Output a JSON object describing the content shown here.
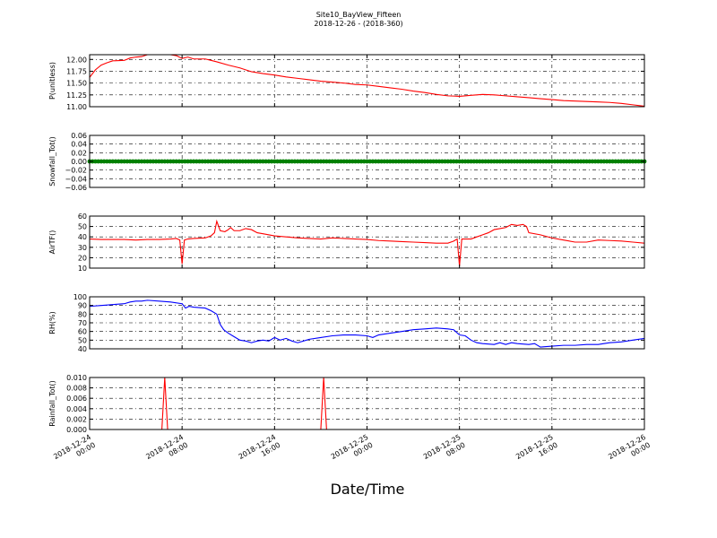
{
  "chart_data": {
    "type": "line",
    "title": "Site10_BayView_Fifteen",
    "subtitle": "2018-12-26 - (2018-360)",
    "xlabel": "Date/Time",
    "grid": true,
    "x_range": [
      "2018-12-24 00:00",
      "2018-12-26 00:00"
    ],
    "x_ticks": [
      {
        "line1": "2018-12-24",
        "line2": "00:00",
        "hour": 0
      },
      {
        "line1": "2018-12-24",
        "line2": "08:00",
        "hour": 8
      },
      {
        "line1": "2018-12-24",
        "line2": "16:00",
        "hour": 16
      },
      {
        "line1": "2018-12-25",
        "line2": "00:00",
        "hour": 24
      },
      {
        "line1": "2018-12-25",
        "line2": "08:00",
        "hour": 32
      },
      {
        "line1": "2018-12-25",
        "line2": "16:00",
        "hour": 40
      },
      {
        "line1": "2018-12-26",
        "line2": "00:00",
        "hour": 48
      }
    ],
    "panels": [
      {
        "ylabel": "P(unitless)",
        "color": "#ff0000",
        "ylim": [
          11.0,
          12.1
        ],
        "yticks": [
          "11.00",
          "11.25",
          "11.50",
          "11.75",
          "12.00"
        ],
        "ytick_values": [
          11.0,
          11.25,
          11.5,
          11.75,
          12.0
        ],
        "points": [
          [
            0,
            11.62
          ],
          [
            0.5,
            11.78
          ],
          [
            1,
            11.88
          ],
          [
            1.5,
            11.93
          ],
          [
            2,
            11.97
          ],
          [
            3,
            11.98
          ],
          [
            3.5,
            12.03
          ],
          [
            4,
            12.05
          ],
          [
            4.5,
            12.06
          ],
          [
            5,
            12.1
          ],
          [
            6,
            12.1
          ],
          [
            7,
            12.1
          ],
          [
            7.5,
            12.08
          ],
          [
            8,
            12.02
          ],
          [
            8.5,
            12.05
          ],
          [
            9,
            12.01
          ],
          [
            10,
            12.01
          ],
          [
            10.5,
            11.98
          ],
          [
            11,
            11.95
          ],
          [
            12,
            11.88
          ],
          [
            13,
            11.82
          ],
          [
            13.5,
            11.78
          ],
          [
            14,
            11.74
          ],
          [
            15,
            11.7
          ],
          [
            16,
            11.67
          ],
          [
            17,
            11.63
          ],
          [
            18,
            11.6
          ],
          [
            19,
            11.57
          ],
          [
            20,
            11.54
          ],
          [
            21,
            11.52
          ],
          [
            22,
            11.5
          ],
          [
            23,
            11.47
          ],
          [
            24,
            11.46
          ],
          [
            25,
            11.43
          ],
          [
            26,
            11.4
          ],
          [
            27,
            11.37
          ],
          [
            28,
            11.33
          ],
          [
            29,
            11.3
          ],
          [
            30,
            11.26
          ],
          [
            31,
            11.23
          ],
          [
            32,
            11.22
          ],
          [
            33,
            11.24
          ],
          [
            34,
            11.26
          ],
          [
            35,
            11.25
          ],
          [
            36,
            11.23
          ],
          [
            37,
            11.21
          ],
          [
            38,
            11.19
          ],
          [
            39,
            11.17
          ],
          [
            40,
            11.15
          ],
          [
            41,
            11.13
          ],
          [
            42,
            11.12
          ],
          [
            43,
            11.11
          ],
          [
            44,
            11.1
          ],
          [
            45,
            11.09
          ],
          [
            46,
            11.07
          ],
          [
            47,
            11.04
          ],
          [
            48,
            11.01
          ]
        ]
      },
      {
        "ylabel": "Snowfall_Tot()",
        "color": "#008000",
        "ylim": [
          -0.06,
          0.06
        ],
        "yticks": [
          "−0.06",
          "−0.04",
          "−0.02",
          "0.00",
          "0.02",
          "0.04",
          "0.06"
        ],
        "ytick_values": [
          -0.06,
          -0.04,
          -0.02,
          0.0,
          0.02,
          0.04,
          0.06
        ],
        "markers": true,
        "points": [
          [
            0,
            0
          ],
          [
            48,
            0
          ]
        ]
      },
      {
        "ylabel": "AirTF()",
        "color": "#ff0000",
        "ylim": [
          10,
          60
        ],
        "yticks": [
          "10",
          "20",
          "30",
          "40",
          "50",
          "60"
        ],
        "ytick_values": [
          10,
          20,
          30,
          40,
          50,
          60
        ],
        "points": [
          [
            0,
            38
          ],
          [
            1,
            37.5
          ],
          [
            2,
            37.5
          ],
          [
            3,
            37.5
          ],
          [
            4,
            37
          ],
          [
            5,
            37.5
          ],
          [
            6,
            37.5
          ],
          [
            7,
            38
          ],
          [
            7.5,
            38.5
          ],
          [
            7.8,
            37
          ],
          [
            8,
            14
          ],
          [
            8.2,
            37
          ],
          [
            8.5,
            38
          ],
          [
            9,
            38.5
          ],
          [
            10,
            39
          ],
          [
            10.5,
            41
          ],
          [
            10.8,
            44
          ],
          [
            11,
            55
          ],
          [
            11.3,
            46
          ],
          [
            11.7,
            45
          ],
          [
            12,
            47
          ],
          [
            12.2,
            49
          ],
          [
            12.5,
            46
          ],
          [
            13,
            46
          ],
          [
            13.5,
            48
          ],
          [
            14,
            47
          ],
          [
            14.5,
            44
          ],
          [
            15,
            43
          ],
          [
            16,
            41
          ],
          [
            17,
            40
          ],
          [
            18,
            39
          ],
          [
            19,
            38.5
          ],
          [
            20,
            38
          ],
          [
            21,
            39
          ],
          [
            22,
            38.5
          ],
          [
            23,
            38
          ],
          [
            24,
            37.5
          ],
          [
            25,
            36.5
          ],
          [
            26,
            36
          ],
          [
            27,
            35.5
          ],
          [
            28,
            35
          ],
          [
            29,
            34.5
          ],
          [
            30,
            34
          ],
          [
            31,
            34
          ],
          [
            31.5,
            36
          ],
          [
            31.8,
            38
          ],
          [
            32,
            12
          ],
          [
            32.2,
            38
          ],
          [
            33,
            38
          ],
          [
            33.5,
            40
          ],
          [
            34,
            42
          ],
          [
            34.5,
            44
          ],
          [
            35,
            47
          ],
          [
            35.5,
            48
          ],
          [
            36,
            49
          ],
          [
            36.5,
            52
          ],
          [
            37,
            51
          ],
          [
            37.5,
            52
          ],
          [
            37.8,
            50
          ],
          [
            38,
            44
          ],
          [
            39,
            42
          ],
          [
            40,
            39
          ],
          [
            41,
            37
          ],
          [
            42,
            35
          ],
          [
            43,
            35
          ],
          [
            44,
            37
          ],
          [
            45,
            36.5
          ],
          [
            46,
            36
          ],
          [
            47,
            35
          ],
          [
            48,
            34
          ]
        ]
      },
      {
        "ylabel": "RH(%)",
        "color": "#0000ff",
        "ylim": [
          40,
          100
        ],
        "yticks": [
          "40",
          "50",
          "60",
          "70",
          "80",
          "90",
          "100"
        ],
        "ytick_values": [
          40,
          50,
          60,
          70,
          80,
          90,
          100
        ],
        "points": [
          [
            0,
            89
          ],
          [
            1,
            90
          ],
          [
            2,
            91
          ],
          [
            3,
            92
          ],
          [
            3.5,
            94
          ],
          [
            4,
            95
          ],
          [
            4.5,
            95
          ],
          [
            5,
            96
          ],
          [
            6,
            95
          ],
          [
            7,
            94
          ],
          [
            8,
            92
          ],
          [
            8.3,
            87
          ],
          [
            8.6,
            89
          ],
          [
            9,
            88
          ],
          [
            10,
            87
          ],
          [
            10.5,
            84
          ],
          [
            11,
            80
          ],
          [
            11.3,
            68
          ],
          [
            11.6,
            62
          ],
          [
            12,
            58
          ],
          [
            12.5,
            54
          ],
          [
            13,
            50
          ],
          [
            13.5,
            49
          ],
          [
            14,
            47
          ],
          [
            14.5,
            49
          ],
          [
            15,
            50
          ],
          [
            15.5,
            49
          ],
          [
            16,
            53
          ],
          [
            16.5,
            50
          ],
          [
            17,
            52
          ],
          [
            17.5,
            49
          ],
          [
            18,
            47
          ],
          [
            18.5,
            49
          ],
          [
            19,
            51
          ],
          [
            20,
            53
          ],
          [
            21,
            55
          ],
          [
            22,
            56
          ],
          [
            23,
            56
          ],
          [
            24,
            55
          ],
          [
            24.5,
            53
          ],
          [
            25,
            56
          ],
          [
            25.5,
            57
          ],
          [
            26,
            58
          ],
          [
            27,
            60
          ],
          [
            28,
            62
          ],
          [
            29,
            63
          ],
          [
            30,
            64
          ],
          [
            31,
            63
          ],
          [
            31.5,
            62
          ],
          [
            32,
            56
          ],
          [
            32.5,
            55
          ],
          [
            33,
            50
          ],
          [
            33.5,
            47
          ],
          [
            34,
            46
          ],
          [
            35,
            45
          ],
          [
            35.5,
            47
          ],
          [
            36,
            45
          ],
          [
            36.5,
            47
          ],
          [
            37,
            46
          ],
          [
            38,
            45
          ],
          [
            38.5,
            46
          ],
          [
            39,
            42
          ],
          [
            40,
            43
          ],
          [
            41,
            44
          ],
          [
            42,
            44
          ],
          [
            43,
            45
          ],
          [
            44,
            45
          ],
          [
            45,
            47
          ],
          [
            46,
            48
          ],
          [
            47,
            50
          ],
          [
            48,
            52
          ]
        ]
      },
      {
        "ylabel": "Rainfall_Tot()",
        "color": "#ff0000",
        "ylim": [
          0,
          0.01
        ],
        "yticks": [
          "0.000",
          "0.002",
          "0.004",
          "0.006",
          "0.008",
          "0.010"
        ],
        "ytick_values": [
          0,
          0.002,
          0.004,
          0.006,
          0.008,
          0.01
        ],
        "points": [
          [
            0,
            0
          ],
          [
            6.25,
            0
          ],
          [
            6.5,
            0.01
          ],
          [
            6.75,
            0
          ],
          [
            20,
            0
          ],
          [
            20.25,
            0.01
          ],
          [
            20.5,
            0
          ],
          [
            48,
            0
          ]
        ]
      }
    ]
  }
}
